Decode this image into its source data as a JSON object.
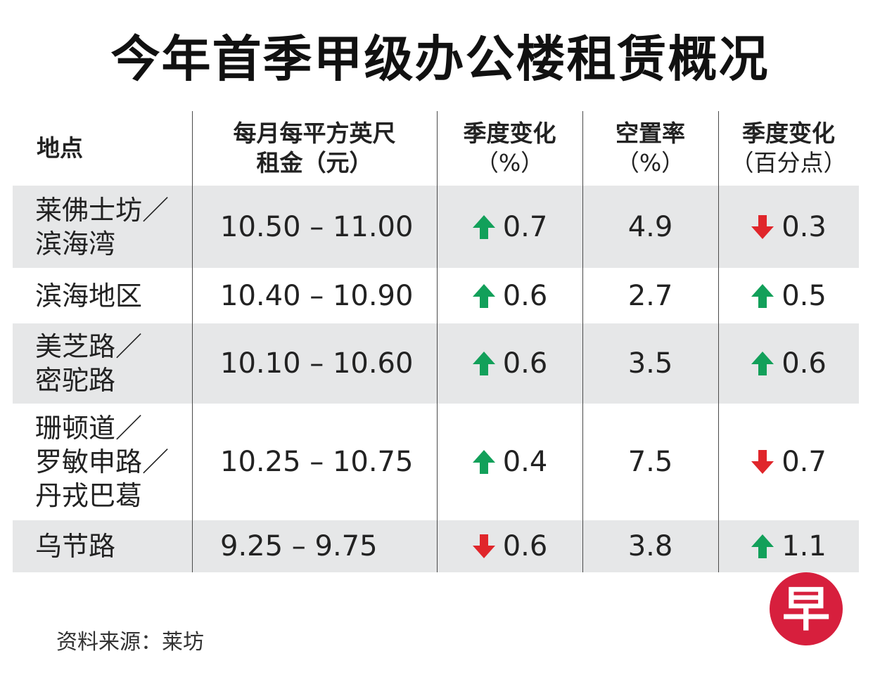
{
  "title": "今年首季甲级办公楼租赁概况",
  "source": "资料来源：莱坊",
  "colors": {
    "up": "#12a05a",
    "down": "#e0262b",
    "shade": "#e6e7e8",
    "logo": "#d71f3d"
  },
  "logo": {
    "char": "早",
    "icon": "zaobao-logo-icon"
  },
  "chart_data": {
    "type": "table",
    "title": "今年首季甲级办公楼租赁概况",
    "columns": [
      {
        "line1": "地点",
        "line2": ""
      },
      {
        "line1": "每月每平方英尺",
        "line2": "租金（元）"
      },
      {
        "line1": "季度变化",
        "line2": "（%）"
      },
      {
        "line1": "空置率",
        "line2": "（%）"
      },
      {
        "line1": "季度变化",
        "line2": "（百分点）"
      }
    ],
    "rows": [
      {
        "location": [
          "莱佛士坊／",
          "滨海湾"
        ],
        "rent": "10.50 – 11.00",
        "rent_change": {
          "dir": "up",
          "value": "0.7"
        },
        "vacancy": "4.9",
        "vacancy_change": {
          "dir": "down",
          "value": "0.3"
        }
      },
      {
        "location": [
          "滨海地区"
        ],
        "rent": "10.40 – 10.90",
        "rent_change": {
          "dir": "up",
          "value": "0.6"
        },
        "vacancy": "2.7",
        "vacancy_change": {
          "dir": "up",
          "value": "0.5"
        }
      },
      {
        "location": [
          "美芝路／",
          "密驼路"
        ],
        "rent": "10.10 – 10.60",
        "rent_change": {
          "dir": "up",
          "value": "0.6"
        },
        "vacancy": "3.5",
        "vacancy_change": {
          "dir": "up",
          "value": "0.6"
        }
      },
      {
        "location": [
          "珊顿道／",
          "罗敏申路／",
          "丹戎巴葛"
        ],
        "rent": "10.25 – 10.75",
        "rent_change": {
          "dir": "up",
          "value": "0.4"
        },
        "vacancy": "7.5",
        "vacancy_change": {
          "dir": "down",
          "value": "0.7"
        }
      },
      {
        "location": [
          "乌节路"
        ],
        "rent": "9.25 – 9.75",
        "rent_change": {
          "dir": "down",
          "value": "0.6"
        },
        "vacancy": "3.8",
        "vacancy_change": {
          "dir": "up",
          "value": "1.1"
        }
      }
    ]
  }
}
